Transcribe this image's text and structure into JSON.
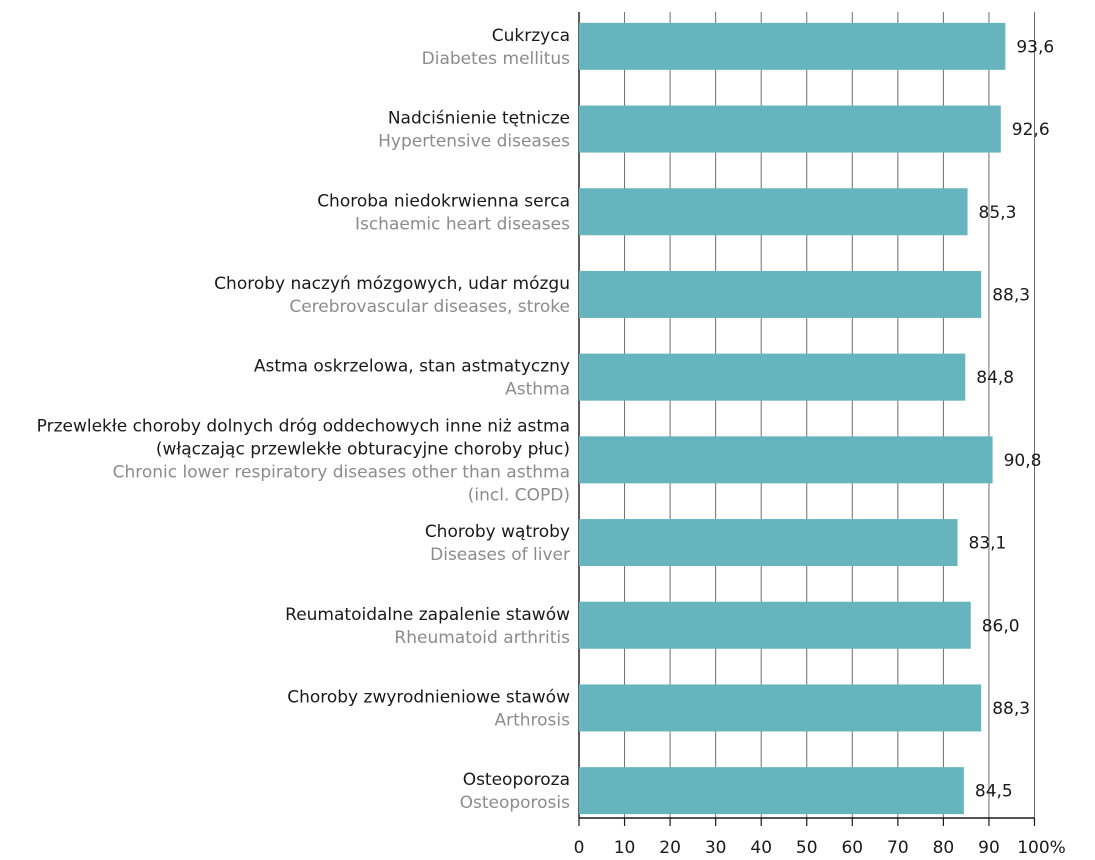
{
  "chart_data": {
    "type": "bar",
    "orientation": "horizontal",
    "bar_color": "#66b4bd",
    "grid": true,
    "xlim": [
      0,
      100
    ],
    "ticks": [
      {
        "value": 0,
        "label": "0"
      },
      {
        "value": 10,
        "label": "10"
      },
      {
        "value": 20,
        "label": "20"
      },
      {
        "value": 30,
        "label": "30"
      },
      {
        "value": 40,
        "label": "40"
      },
      {
        "value": 50,
        "label": "50"
      },
      {
        "value": 60,
        "label": "60"
      },
      {
        "value": 70,
        "label": "70"
      },
      {
        "value": 80,
        "label": "80"
      },
      {
        "value": 90,
        "label": "90"
      },
      {
        "value": 100,
        "label": "100%"
      }
    ],
    "categories": [
      {
        "pl": [
          "Cukrzyca"
        ],
        "en": [
          "Diabetes mellitus"
        ],
        "value": 93.6,
        "value_label": "93,6"
      },
      {
        "pl": [
          "Nadciśnienie tętnicze"
        ],
        "en": [
          "Hypertensive diseases"
        ],
        "value": 92.6,
        "value_label": "92,6"
      },
      {
        "pl": [
          "Choroba niedokrwienna serca"
        ],
        "en": [
          "Ischaemic heart diseases"
        ],
        "value": 85.3,
        "value_label": "85,3"
      },
      {
        "pl": [
          "Choroby naczyń mózgowych, udar mózgu"
        ],
        "en": [
          "Cerebrovascular diseases, stroke"
        ],
        "value": 88.3,
        "value_label": "88,3"
      },
      {
        "pl": [
          "Astma oskrzelowa, stan astmatyczny"
        ],
        "en": [
          "Asthma"
        ],
        "value": 84.8,
        "value_label": "84,8"
      },
      {
        "pl": [
          "Przewlekłe choroby dolnych dróg oddechowych inne niż astma",
          "(włączając przewlekłe obturacyjne choroby płuc)"
        ],
        "en": [
          "Chronic lower respiratory diseases other than asthma",
          "(incl. COPD)"
        ],
        "value": 90.8,
        "value_label": "90,8"
      },
      {
        "pl": [
          "Choroby wątroby"
        ],
        "en": [
          "Diseases of liver"
        ],
        "value": 83.1,
        "value_label": "83,1"
      },
      {
        "pl": [
          "Reumatoidalne zapalenie stawów"
        ],
        "en": [
          "Rheumatoid arthritis"
        ],
        "value": 86.0,
        "value_label": "86,0"
      },
      {
        "pl": [
          "Choroby zwyrodnieniowe stawów"
        ],
        "en": [
          "Arthrosis"
        ],
        "value": 88.3,
        "value_label": "88,3"
      },
      {
        "pl": [
          "Osteoporoza"
        ],
        "en": [
          "Osteoporosis"
        ],
        "value": 84.5,
        "value_label": "84,5"
      }
    ]
  }
}
